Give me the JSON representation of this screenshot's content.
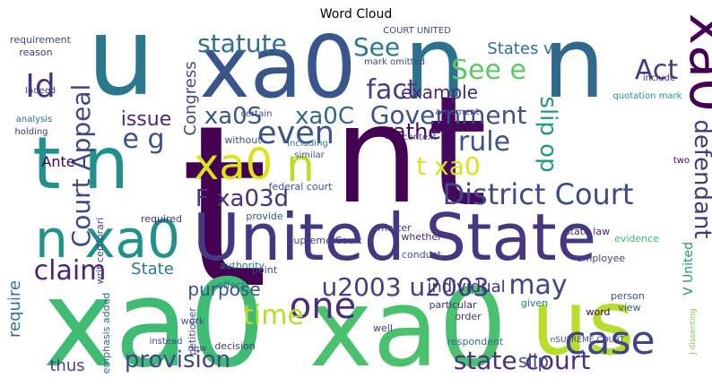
{
  "chart_data": {
    "type": "wordcloud",
    "title": "Word Cloud",
    "words": [
      "t",
      "n",
      "t",
      "xa0",
      "xa0",
      "u",
      "xa0",
      "n",
      "n",
      "United State",
      "us",
      "t n",
      "xa0",
      "District Court",
      "case",
      "state court",
      "one",
      "u2003 u2003",
      "may",
      "claim",
      "Government",
      "statute",
      "fact",
      "Act",
      "defendant",
      "xa0S",
      "xa0C",
      "Court Appeal",
      "Id",
      "even",
      "xa0",
      "n",
      "rule",
      "See",
      "See e",
      "time",
      "provision",
      "n xa0",
      "F xa03d",
      "purpose",
      "slip op",
      "example",
      "issue",
      "t xa0",
      "Congress",
      "individual",
      "thus",
      "require",
      "slip",
      "Ante",
      "e g",
      "State",
      "requirement",
      "reason",
      "Indeed",
      "analysis",
      "holding",
      "States v",
      "rather",
      "V United",
      "Supreme Court",
      "state law",
      "evidence",
      "employee",
      "particular",
      "decision",
      "petitioner",
      "well",
      "word",
      "given",
      "person",
      "view",
      "respondent",
      "COURT UNITED",
      "mark omitted",
      "federal court",
      "include",
      "quotation mark",
      "argument",
      "context",
      "two",
      "certain",
      "without",
      "including",
      "similar",
      "matter",
      "whether",
      "conduct",
      "order",
      "effect",
      "work",
      "new",
      "instead",
      "emphasis added",
      "writ certiorari",
      "required",
      "provide",
      "authority",
      "point",
      "nSUPREME COURT",
      "J dissenting"
    ]
  }
}
